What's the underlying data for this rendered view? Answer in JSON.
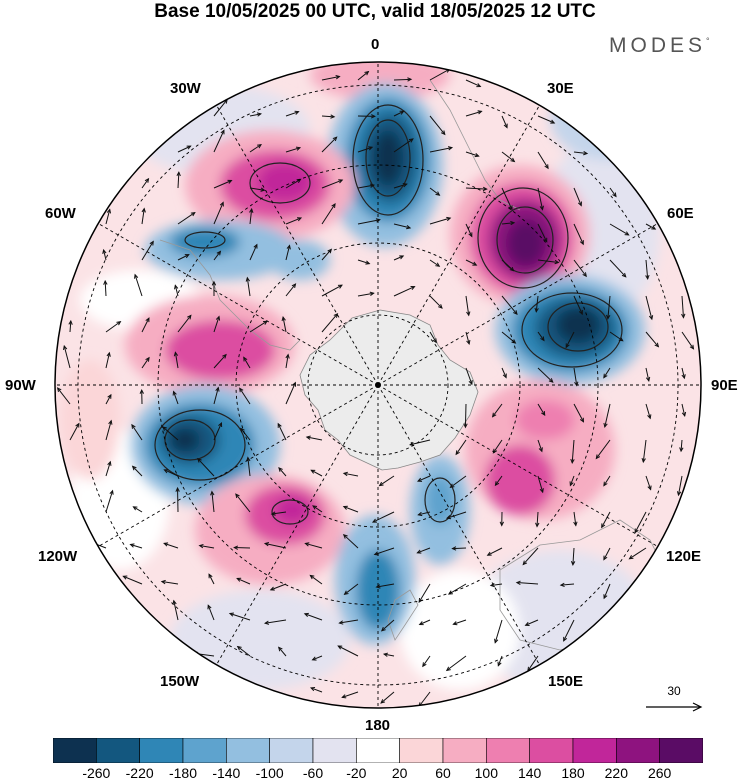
{
  "title": "Base 10/05/2025 00 UTC, valid 18/05/2025 12 UTC",
  "logo": {
    "text": "MODES",
    "mark": "°"
  },
  "longitude_labels": [
    "0",
    "30E",
    "60E",
    "90E",
    "120E",
    "150E",
    "180",
    "150W",
    "120W",
    "90W",
    "60W",
    "30W"
  ],
  "reference_vector": {
    "label": "30"
  },
  "colorbar": {
    "ticks": [
      "-260",
      "-220",
      "-180",
      "-140",
      "-100",
      "-60",
      "-20",
      "20",
      "60",
      "100",
      "140",
      "180",
      "220",
      "260"
    ],
    "colors": [
      "#0d3150",
      "#13577f",
      "#2f86b6",
      "#5ea3ce",
      "#93bfe0",
      "#c4d5eb",
      "#e3e3f0",
      "#ffffff",
      "#fbd6d8",
      "#f6adc2",
      "#ee7fb0",
      "#dc4ea1",
      "#c1269a",
      "#8e137f",
      "#5a0c65"
    ]
  },
  "map": {
    "projection": "south-polar-stereographic",
    "antarctica_color": "#ececec"
  }
}
